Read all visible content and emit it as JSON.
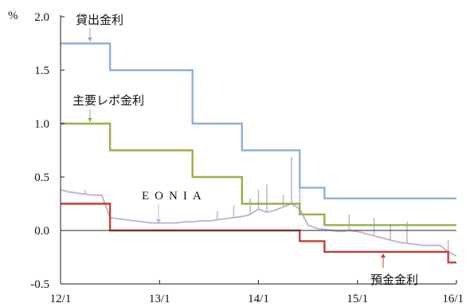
{
  "chart_data": {
    "type": "line",
    "title": "",
    "xlabel": "",
    "ylabel": "%",
    "ylim": [
      -0.5,
      2.0
    ],
    "xlim": [
      "2012-01",
      "2016-01"
    ],
    "yticks": [
      {
        "value": 2.0,
        "label": "2.0"
      },
      {
        "value": 1.5,
        "label": "1.5"
      },
      {
        "value": 1.0,
        "label": "1.0"
      },
      {
        "value": 0.5,
        "label": "0.5"
      },
      {
        "value": 0.0,
        "label": "0.0"
      },
      {
        "value": -0.5,
        "label": "-0.5"
      }
    ],
    "xticks": [
      {
        "value": "2012-01",
        "label": "12/1"
      },
      {
        "value": "2013-01",
        "label": "13/1"
      },
      {
        "value": "2014-01",
        "label": "14/1"
      },
      {
        "value": "2015-01",
        "label": "15/1"
      },
      {
        "value": "2016-01",
        "label": "16/1"
      }
    ],
    "grid": false,
    "legend": "none (series labeled directly on chart)",
    "series": [
      {
        "name": "貸出金利",
        "color": "#8fb0d6",
        "step": true,
        "points": [
          [
            "2012-01",
            1.75
          ],
          [
            "2012-07",
            1.5
          ],
          [
            "2013-05",
            1.0
          ],
          [
            "2013-11",
            0.75
          ],
          [
            "2014-06",
            0.4
          ],
          [
            "2014-09",
            0.3
          ],
          [
            "2016-01",
            0.3
          ]
        ]
      },
      {
        "name": "主要レポ金利",
        "color": "#92b24a",
        "step": true,
        "points": [
          [
            "2012-01",
            1.0
          ],
          [
            "2012-07",
            0.75
          ],
          [
            "2013-05",
            0.5
          ],
          [
            "2013-11",
            0.25
          ],
          [
            "2014-06",
            0.15
          ],
          [
            "2014-09",
            0.05
          ],
          [
            "2016-01",
            0.05
          ]
        ]
      },
      {
        "name": "預金金利",
        "color": "#c0413a",
        "step": true,
        "points": [
          [
            "2012-01",
            0.25
          ],
          [
            "2012-07",
            0.0
          ],
          [
            "2014-06",
            -0.1
          ],
          [
            "2014-09",
            -0.2
          ],
          [
            "2015-12",
            -0.3
          ],
          [
            "2016-01",
            -0.3
          ]
        ]
      },
      {
        "name": "EONIA",
        "color": "#c6b3d6",
        "step": false,
        "points": [
          [
            "2012-01",
            0.38
          ],
          [
            "2012-02",
            0.36
          ],
          [
            "2012-03",
            0.35
          ],
          [
            "2012-04",
            0.34
          ],
          [
            "2012-05",
            0.33
          ],
          [
            "2012-06",
            0.33
          ],
          [
            "2012-07",
            0.12
          ],
          [
            "2012-08",
            0.11
          ],
          [
            "2012-09",
            0.1
          ],
          [
            "2012-10",
            0.09
          ],
          [
            "2012-11",
            0.08
          ],
          [
            "2012-12",
            0.07
          ],
          [
            "2013-01",
            0.07
          ],
          [
            "2013-02",
            0.07
          ],
          [
            "2013-03",
            0.07
          ],
          [
            "2013-04",
            0.08
          ],
          [
            "2013-05",
            0.08
          ],
          [
            "2013-06",
            0.09
          ],
          [
            "2013-07",
            0.09
          ],
          [
            "2013-08",
            0.1
          ],
          [
            "2013-09",
            0.11
          ],
          [
            "2013-10",
            0.12
          ],
          [
            "2013-11",
            0.13
          ],
          [
            "2013-12",
            0.15
          ],
          [
            "2014-01",
            0.2
          ],
          [
            "2014-02",
            0.17
          ],
          [
            "2014-03",
            0.19
          ],
          [
            "2014-04",
            0.22
          ],
          [
            "2014-05",
            0.25
          ],
          [
            "2014-06",
            0.2
          ],
          [
            "2014-07",
            0.05
          ],
          [
            "2014-08",
            0.02
          ],
          [
            "2014-09",
            0.01
          ],
          [
            "2014-10",
            0.0
          ],
          [
            "2014-11",
            -0.01
          ],
          [
            "2014-12",
            0.0
          ],
          [
            "2015-01",
            -0.01
          ],
          [
            "2015-02",
            -0.03
          ],
          [
            "2015-03",
            -0.05
          ],
          [
            "2015-04",
            -0.07
          ],
          [
            "2015-05",
            -0.09
          ],
          [
            "2015-06",
            -0.11
          ],
          [
            "2015-07",
            -0.12
          ],
          [
            "2015-08",
            -0.13
          ],
          [
            "2015-09",
            -0.14
          ],
          [
            "2015-10",
            -0.14
          ],
          [
            "2015-11",
            -0.14
          ],
          [
            "2015-12",
            -0.2
          ],
          [
            "2016-01",
            -0.24
          ]
        ],
        "spikes": [
          [
            "2012-04",
            0.38
          ],
          [
            "2013-08",
            0.18
          ],
          [
            "2013-10",
            0.23
          ],
          [
            "2013-12",
            0.3
          ],
          [
            "2014-01",
            0.38
          ],
          [
            "2014-02",
            0.43
          ],
          [
            "2014-04",
            0.33
          ],
          [
            "2014-05",
            0.69
          ],
          [
            "2014-06",
            0.42
          ],
          [
            "2014-12",
            0.15
          ],
          [
            "2015-03",
            0.12
          ],
          [
            "2015-05",
            0.06
          ],
          [
            "2015-07",
            0.08
          ],
          [
            "2015-12",
            -0.09
          ]
        ]
      }
    ],
    "annotations": [
      {
        "text": "貸出金利",
        "series": "貸出金利"
      },
      {
        "text": "主要レポ金利",
        "series": "主要レポ金利"
      },
      {
        "text": "EONIA",
        "series": "EONIA"
      },
      {
        "text": "預金金利",
        "series": "預金金利"
      }
    ]
  }
}
